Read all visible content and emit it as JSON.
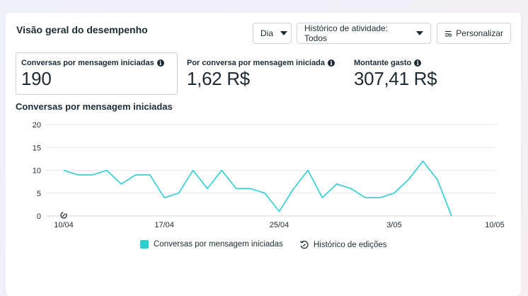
{
  "header": {
    "title": "Visão geral do desempenho",
    "day_label": "Dia",
    "history_label": "Histórico de atividade: Todos",
    "customize_label": "Personalizar"
  },
  "metrics": [
    {
      "label": "Conversas por mensagem iniciadas",
      "value": "190"
    },
    {
      "label": "Por conversa por mensagem iniciada",
      "value": "1,62 R$"
    },
    {
      "label": "Montante gasto",
      "value": "307,41 R$"
    }
  ],
  "chart_title": "Conversas por mensagem iniciadas",
  "legend": {
    "series": "Conversas por mensagem iniciadas",
    "edits": "Histórico de edições"
  },
  "chart_data": {
    "type": "line",
    "title": "Conversas por mensagem iniciadas",
    "x_tick_labels": [
      "10/04",
      "17/04",
      "25/04",
      "3/05",
      "10/05"
    ],
    "y_ticks": [
      0,
      5,
      10,
      15,
      20
    ],
    "ylim": [
      0,
      20
    ],
    "grid": true,
    "legend_placement": "bottom",
    "color": "#2ccfcf",
    "series": [
      {
        "name": "Conversas por mensagem iniciadas",
        "values": [
          10,
          9,
          9,
          10,
          7,
          9,
          9,
          4,
          5,
          10,
          6,
          10,
          6,
          6,
          5,
          1,
          6,
          10,
          4,
          7,
          6,
          4,
          4,
          5,
          8,
          12,
          8,
          0
        ]
      }
    ]
  }
}
